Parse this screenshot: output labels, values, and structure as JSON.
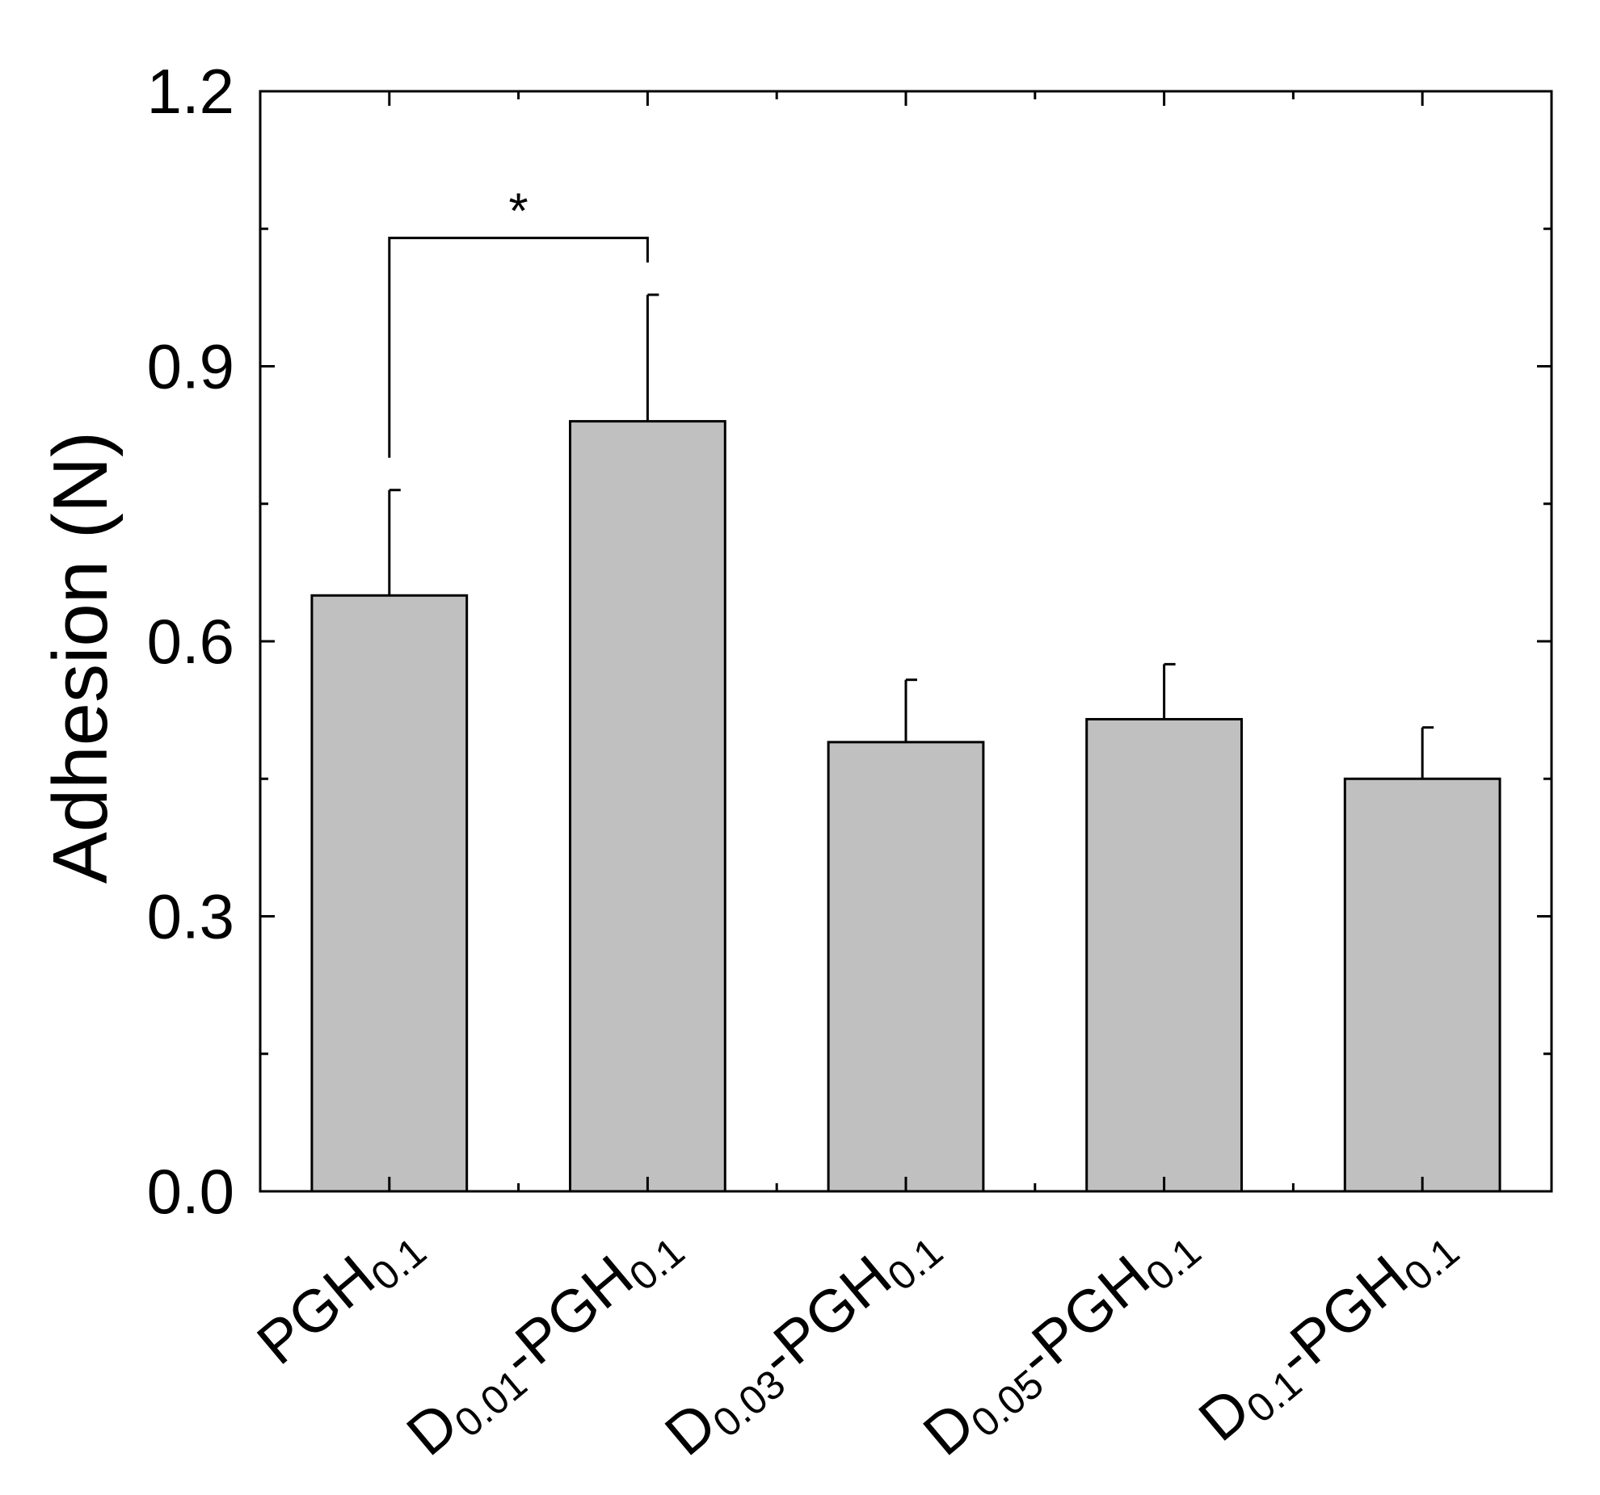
{
  "chart_data": {
    "type": "bar",
    "title": "",
    "xlabel": "",
    "ylabel": "Adhesion (N)",
    "ylim": [
      0,
      1.2
    ],
    "yticks": [
      "0.0",
      "0.3",
      "0.6",
      "0.9",
      "1.2"
    ],
    "grid": false,
    "bar_color": "#c0c0c0",
    "categories": [
      {
        "base": "PGH",
        "sub": "0.1",
        "suffix": "",
        "suffix_sub": ""
      },
      {
        "base": "D",
        "sub": "0.01",
        "suffix": "-PGH",
        "suffix_sub": "0.1"
      },
      {
        "base": "D",
        "sub": "0.03",
        "suffix": "-PGH",
        "suffix_sub": "0.1"
      },
      {
        "base": "D",
        "sub": "0.05",
        "suffix": "-PGH",
        "suffix_sub": "0.1"
      },
      {
        "base": "D",
        "sub": "0.1",
        "suffix": "-PGH",
        "suffix_sub": "0.1"
      }
    ],
    "values": [
      0.65,
      0.84,
      0.49,
      0.515,
      0.45
    ],
    "errors": [
      0.115,
      0.138,
      0.068,
      0.06,
      0.056
    ],
    "significance": [
      {
        "from": 0,
        "to": 1,
        "label": "*",
        "level": 1.04
      }
    ]
  }
}
